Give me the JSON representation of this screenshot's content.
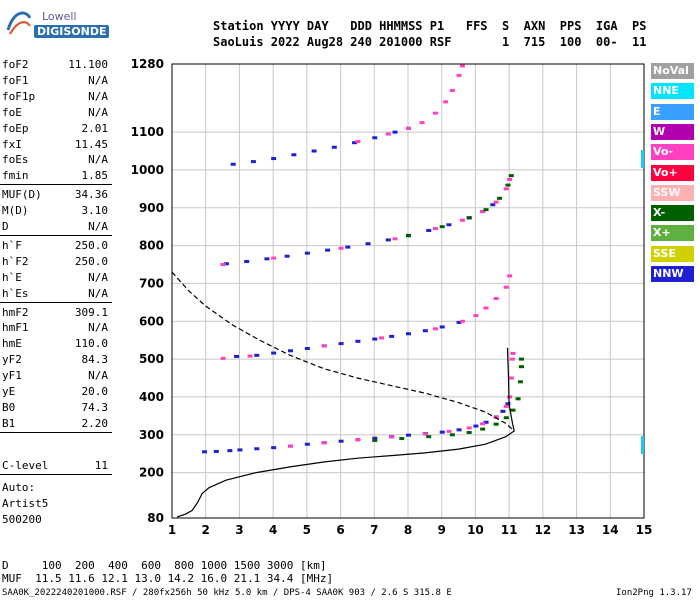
{
  "logo": {
    "line1": "Lowell",
    "line2": "DIGISONDE"
  },
  "header": {
    "labels": "Station YYYY DAY   DDD HHMMSS P1   FFS  S  AXN  PPS  IGA  PS",
    "values": "SaoLuis 2022 Aug28 240 201000 RSF       1  715  100  00-  11"
  },
  "params": [
    {
      "name": "foF2",
      "value": "11.100"
    },
    {
      "name": "foF1",
      "value": "N/A"
    },
    {
      "name": "foF1p",
      "value": "N/A"
    },
    {
      "name": "foE",
      "value": "N/A"
    },
    {
      "name": "foEp",
      "value": "2.01"
    },
    {
      "name": "fxI",
      "value": "11.45"
    },
    {
      "name": "foEs",
      "value": "N/A"
    },
    {
      "name": "fmin",
      "value": "1.85"
    },
    {
      "name": "MUF(D)",
      "value": "34.36"
    },
    {
      "name": "M(D)",
      "value": "3.10"
    },
    {
      "name": "D",
      "value": "N/A"
    },
    {
      "name": "h`F",
      "value": "250.0"
    },
    {
      "name": "h`F2",
      "value": "250.0"
    },
    {
      "name": "h`E",
      "value": "N/A"
    },
    {
      "name": "h`Es",
      "value": "N/A"
    },
    {
      "name": "hmF2",
      "value": "309.1"
    },
    {
      "name": "hmF1",
      "value": "N/A"
    },
    {
      "name": "hmE",
      "value": "110.0"
    },
    {
      "name": "yF2",
      "value": "84.3"
    },
    {
      "name": "yF1",
      "value": "N/A"
    },
    {
      "name": "yE",
      "value": "20.0"
    },
    {
      "name": "B0",
      "value": "74.3"
    },
    {
      "name": "B1",
      "value": "2.20"
    }
  ],
  "clevel": {
    "name": "C-level",
    "value": "11"
  },
  "autoscaler": {
    "label": "Auto:",
    "name": "Artist5",
    "version": "500200"
  },
  "legend": [
    {
      "label": "NoVal",
      "bg": "#a0a0a0",
      "fg": "#ffffff"
    },
    {
      "label": "NNE",
      "bg": "#00e5ff",
      "fg": "#ffffff"
    },
    {
      "label": "E",
      "bg": "#3aa0ff",
      "fg": "#ffffff"
    },
    {
      "label": "W",
      "bg": "#b000b0",
      "fg": "#ffffff"
    },
    {
      "label": "Vo-",
      "bg": "#ff40c0",
      "fg": "#ffffff"
    },
    {
      "label": "Vo+",
      "bg": "#ff0040",
      "fg": "#ffffff"
    },
    {
      "label": "SSW",
      "bg": "#ffb0b0",
      "fg": "#ffffff"
    },
    {
      "label": "X-",
      "bg": "#006000",
      "fg": "#ffffff"
    },
    {
      "label": "X+",
      "bg": "#60b040",
      "fg": "#ffffff"
    },
    {
      "label": "SSE",
      "bg": "#d0d000",
      "fg": "#ffffff"
    },
    {
      "label": "NNW",
      "bg": "#2020d0",
      "fg": "#ffffff"
    }
  ],
  "muf_table": {
    "d_row": "D     100  200  400  600  800 1000 1500 3000 [km]",
    "muf_row": "MUF  11.5 11.6 12.1 13.0 14.2 16.0 21.1 34.4 [MHz]"
  },
  "footer": {
    "left": "SAA0K_2022240201000.RSF / 280fx256h 50 kHz 5.0 km / DPS-4 SAA0K 903 / 2.6 S 315.8 E",
    "right": "Ion2Png 1.3.17"
  },
  "chart_data": {
    "type": "scatter",
    "title": "",
    "xlabel": "",
    "ylabel": "",
    "xlim": [
      1,
      15
    ],
    "ylim": [
      80,
      1280
    ],
    "x_ticks": [
      1,
      2,
      3,
      4,
      5,
      6,
      7,
      8,
      9,
      10,
      11,
      12,
      13,
      14,
      15
    ],
    "y_ticks": [
      80,
      200,
      300,
      400,
      500,
      600,
      700,
      800,
      900,
      1000,
      1100,
      1280
    ],
    "series": [
      {
        "color": "#2020d0",
        "style": "points",
        "points": [
          [
            1.95,
            255
          ],
          [
            2.3,
            256
          ],
          [
            2.7,
            258
          ],
          [
            3.0,
            260
          ],
          [
            3.5,
            263
          ],
          [
            4.0,
            266
          ],
          [
            4.5,
            270
          ],
          [
            5.0,
            275
          ],
          [
            5.5,
            279
          ],
          [
            6.0,
            283
          ],
          [
            6.5,
            287
          ],
          [
            7.0,
            291
          ],
          [
            7.5,
            295
          ],
          [
            8.0,
            299
          ],
          [
            8.5,
            303
          ],
          [
            9.0,
            307
          ],
          [
            9.5,
            313
          ],
          [
            10.0,
            323
          ],
          [
            10.3,
            333
          ],
          [
            10.6,
            347
          ],
          [
            10.8,
            362
          ],
          [
            10.95,
            382
          ]
        ]
      },
      {
        "color": "#ff40c0",
        "style": "points",
        "points": [
          [
            4.5,
            270
          ],
          [
            5.5,
            279
          ],
          [
            6.5,
            287
          ],
          [
            7.5,
            294
          ],
          [
            8.5,
            302
          ],
          [
            9.2,
            309
          ],
          [
            9.8,
            318
          ],
          [
            10.2,
            329
          ],
          [
            10.6,
            346
          ],
          [
            10.9,
            375
          ],
          [
            11.0,
            400
          ],
          [
            11.05,
            450
          ],
          [
            11.08,
            500
          ],
          [
            11.1,
            515
          ]
        ]
      },
      {
        "color": "#006000",
        "style": "points",
        "points": [
          [
            7.0,
            285
          ],
          [
            7.8,
            290
          ],
          [
            8.6,
            295
          ],
          [
            9.3,
            300
          ],
          [
            9.8,
            306
          ],
          [
            10.2,
            315
          ],
          [
            10.6,
            328
          ],
          [
            10.9,
            345
          ],
          [
            11.1,
            365
          ],
          [
            11.25,
            395
          ],
          [
            11.32,
            440
          ],
          [
            11.35,
            480
          ],
          [
            11.35,
            500
          ]
        ]
      },
      {
        "color": "#2020d0",
        "style": "points",
        "points": [
          [
            2.9,
            507
          ],
          [
            3.5,
            510
          ],
          [
            4.0,
            516
          ],
          [
            4.5,
            522
          ],
          [
            5.0,
            528
          ],
          [
            5.5,
            535
          ],
          [
            6.0,
            541
          ],
          [
            6.5,
            547
          ],
          [
            7.0,
            553
          ],
          [
            7.5,
            560
          ],
          [
            8.0,
            567
          ],
          [
            8.5,
            575
          ],
          [
            9.0,
            585
          ],
          [
            9.5,
            597
          ]
        ]
      },
      {
        "color": "#ff40c0",
        "style": "points",
        "points": [
          [
            2.5,
            502
          ],
          [
            3.3,
            508
          ],
          [
            5.5,
            535
          ],
          [
            7.2,
            556
          ],
          [
            8.8,
            580
          ],
          [
            9.6,
            600
          ],
          [
            10.0,
            615
          ],
          [
            10.3,
            635
          ],
          [
            10.6,
            660
          ],
          [
            10.9,
            690
          ],
          [
            11.0,
            720
          ]
        ]
      },
      {
        "color": "#2020d0",
        "style": "points",
        "points": [
          [
            2.6,
            752
          ],
          [
            3.2,
            758
          ],
          [
            3.8,
            765
          ],
          [
            4.4,
            772
          ],
          [
            5.0,
            780
          ],
          [
            5.6,
            788
          ],
          [
            6.2,
            796
          ],
          [
            6.8,
            805
          ],
          [
            7.4,
            815
          ],
          [
            8.0,
            827
          ],
          [
            8.6,
            840
          ],
          [
            9.2,
            855
          ],
          [
            9.8,
            873
          ],
          [
            10.2,
            890
          ],
          [
            10.5,
            908
          ]
        ]
      },
      {
        "color": "#ff40c0",
        "style": "points",
        "points": [
          [
            2.5,
            750
          ],
          [
            4.0,
            767
          ],
          [
            6.0,
            793
          ],
          [
            7.6,
            818
          ],
          [
            8.8,
            845
          ],
          [
            9.6,
            867
          ],
          [
            10.2,
            890
          ],
          [
            10.6,
            915
          ],
          [
            10.9,
            950
          ],
          [
            11.0,
            975
          ]
        ]
      },
      {
        "color": "#006000",
        "style": "points",
        "points": [
          [
            8.0,
            826
          ],
          [
            9.0,
            850
          ],
          [
            9.8,
            874
          ],
          [
            10.3,
            895
          ],
          [
            10.7,
            925
          ],
          [
            10.95,
            960
          ],
          [
            11.05,
            985
          ]
        ]
      },
      {
        "color": "#2020d0",
        "style": "points",
        "points": [
          [
            2.8,
            1015
          ],
          [
            3.4,
            1022
          ],
          [
            4.0,
            1030
          ],
          [
            4.6,
            1040
          ],
          [
            5.2,
            1050
          ],
          [
            5.8,
            1060
          ],
          [
            6.4,
            1072
          ],
          [
            7.0,
            1085
          ],
          [
            7.6,
            1100
          ],
          [
            8.0,
            1110
          ]
        ]
      },
      {
        "color": "#ff40c0",
        "style": "points",
        "points": [
          [
            6.5,
            1075
          ],
          [
            7.4,
            1095
          ],
          [
            8.0,
            1110
          ],
          [
            8.4,
            1125
          ],
          [
            8.8,
            1150
          ],
          [
            9.1,
            1180
          ],
          [
            9.3,
            1210
          ],
          [
            9.5,
            1250
          ],
          [
            9.6,
            1275
          ]
        ]
      },
      {
        "color": "#000000",
        "style": "solid",
        "points": [
          [
            1.15,
            83
          ],
          [
            1.4,
            90
          ],
          [
            1.6,
            100
          ],
          [
            1.75,
            120
          ],
          [
            1.9,
            145
          ],
          [
            2.1,
            160
          ],
          [
            2.6,
            180
          ],
          [
            3.5,
            200
          ],
          [
            4.5,
            215
          ],
          [
            5.5,
            228
          ],
          [
            6.5,
            238
          ],
          [
            7.5,
            245
          ],
          [
            8.5,
            252
          ],
          [
            9.5,
            262
          ],
          [
            10.3,
            275
          ],
          [
            10.9,
            295
          ],
          [
            11.15,
            310
          ],
          [
            11.1,
            330
          ],
          [
            11.0,
            380
          ],
          [
            10.98,
            450
          ],
          [
            10.95,
            530
          ]
        ]
      },
      {
        "color": "#000000",
        "style": "dashed",
        "points": [
          [
            1.0,
            730
          ],
          [
            1.5,
            680
          ],
          [
            2.0,
            640
          ],
          [
            2.8,
            590
          ],
          [
            3.6,
            550
          ],
          [
            4.5,
            510
          ],
          [
            5.5,
            475
          ],
          [
            6.5,
            450
          ],
          [
            7.5,
            430
          ],
          [
            8.5,
            410
          ],
          [
            9.5,
            385
          ],
          [
            10.3,
            360
          ],
          [
            10.9,
            330
          ],
          [
            11.15,
            310
          ]
        ]
      }
    ]
  }
}
